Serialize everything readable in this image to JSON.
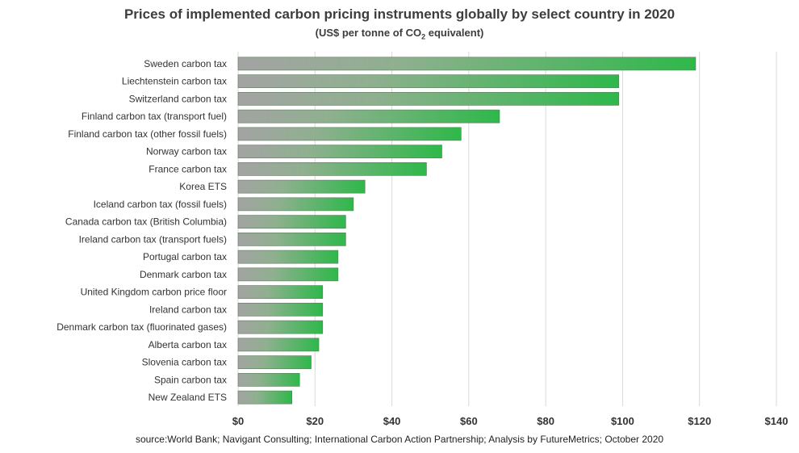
{
  "chart_data": {
    "type": "bar",
    "orientation": "horizontal",
    "title": "Prices of implemented carbon pricing instruments globally by select country in 2020",
    "subtitle": {
      "before": "(US$ per tonne of CO",
      "sub": "2",
      "after": " equivalent)"
    },
    "source": "source:World Bank; Navigant Consulting; International Carbon Action Partnership; Analysis by FutureMetrics; October 2020",
    "categories": [
      "Sweden carbon tax",
      "Liechtenstein carbon tax",
      "Switzerland carbon tax",
      "Finland carbon tax (transport fuel)",
      "Finland carbon tax (other fossil fuels)",
      "Norway carbon tax",
      "France carbon tax",
      "Korea ETS",
      "Iceland carbon tax (fossil fuels)",
      "Canada carbon tax (British Columbia)",
      "Ireland carbon tax (transport fuels)",
      "Portugal carbon tax",
      "Denmark carbon tax",
      "United Kingdom carbon price floor",
      "Ireland carbon tax",
      "Denmark carbon tax (fluorinated gases)",
      "Alberta carbon tax",
      "Slovenia carbon tax",
      "Spain carbon tax",
      "New Zealand ETS"
    ],
    "values": [
      119,
      99,
      99,
      68,
      58,
      53,
      49,
      33,
      30,
      28,
      28,
      26,
      26,
      22,
      22,
      22,
      21,
      19,
      16,
      14
    ],
    "xlim": [
      0,
      140
    ],
    "x_ticks": [
      0,
      20,
      40,
      60,
      80,
      100,
      120,
      140
    ],
    "x_tick_labels": [
      "$0",
      "$20",
      "$40",
      "$60",
      "$80",
      "$100",
      "$120",
      "$140"
    ],
    "grid": "vertical",
    "legend": "none",
    "colors": {
      "bar_start": "#a3a3a3",
      "bar_end": "#2eb84a",
      "grid": "#d9d9d9",
      "text": "#333333"
    }
  }
}
